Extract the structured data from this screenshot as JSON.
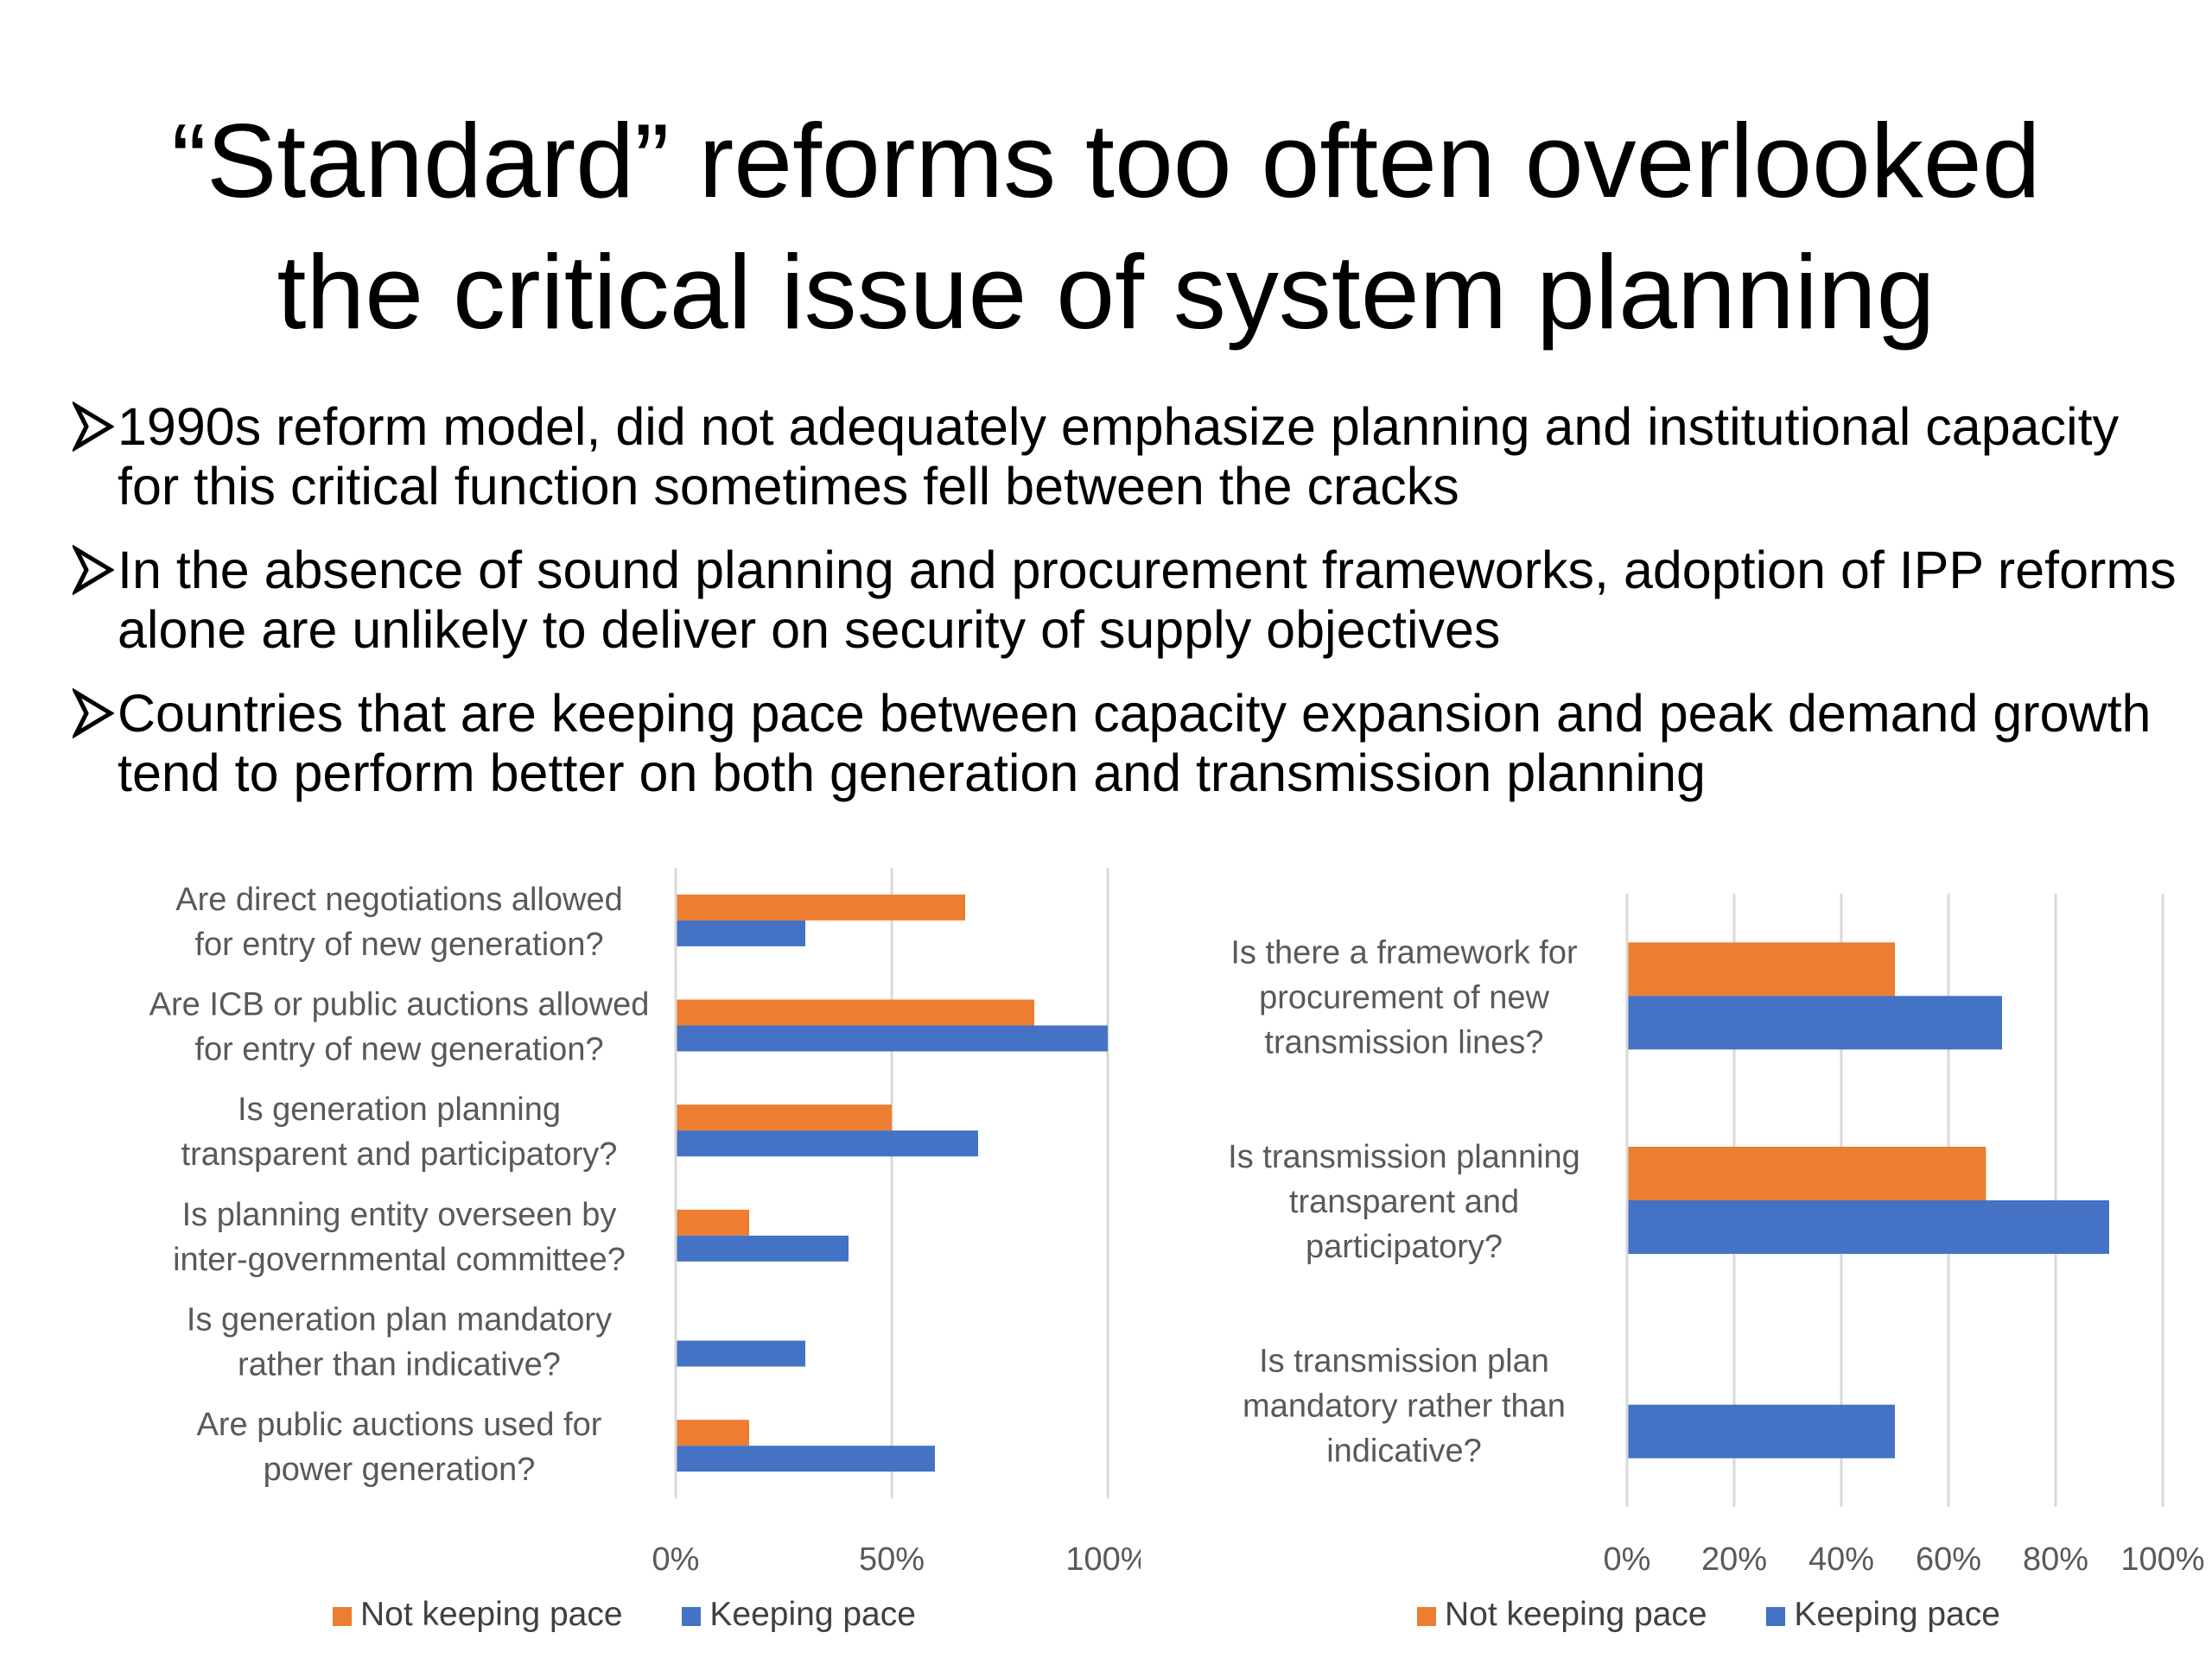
{
  "slide": {
    "title_lines": [
      "“Standard” reforms too often overlooked",
      "the critical issue of system planning"
    ],
    "bullets": [
      "1990s reform model, did not adequately emphasize planning and institutional capacity for this critical function sometimes fell between the cracks",
      "In the absence of sound planning and procurement frameworks, adoption of IPP reforms alone are unlikely to deliver on security of supply objectives",
      "Countries that are keeping pace between capacity expansion and peak demand growth tend to perform better on both generation and transmission planning"
    ],
    "bullet_icon": "arrow-bullet-icon"
  },
  "colors": {
    "not_keeping_pace": "#ED7D31",
    "keeping_pace": "#4472C4",
    "gridline": "#D9D9D9",
    "axis_text": "#595959"
  },
  "chart_data": [
    {
      "type": "bar",
      "orientation": "horizontal",
      "categories": [
        [
          "Are direct negotiations allowed",
          "for entry of new generation?"
        ],
        [
          "Are ICB or public auctions allowed",
          "for entry of new generation?"
        ],
        [
          "Is generation planning",
          "transparent and participatory?"
        ],
        [
          "Is planning entity overseen by",
          "inter-governmental committee?"
        ],
        [
          "Is generation plan mandatory",
          "rather than indicative?"
        ],
        [
          "Are public auctions used for",
          "power generation?"
        ]
      ],
      "series": [
        {
          "name": "Not keeping pace",
          "values": [
            0.67,
            0.83,
            0.5,
            0.17,
            0.0,
            0.17
          ]
        },
        {
          "name": "Keeping pace",
          "values": [
            0.3,
            1.0,
            0.7,
            0.4,
            0.3,
            0.6
          ]
        }
      ],
      "xlim": [
        0,
        1
      ],
      "xticks": [
        "0%",
        "50%",
        "100%"
      ],
      "xtick_values": [
        0,
        0.5,
        1
      ],
      "legend": [
        "Not keeping pace",
        "Keeping pace"
      ],
      "legend_position": "bottom",
      "grid": true
    },
    {
      "type": "bar",
      "orientation": "horizontal",
      "categories": [
        [
          "Is there a framework for",
          "procurement of new",
          "transmission lines?"
        ],
        [
          "Is transmission planning",
          "transparent and",
          "participatory?"
        ],
        [
          "Is transmission plan",
          "mandatory rather than",
          "indicative?"
        ]
      ],
      "series": [
        {
          "name": "Not keeping pace",
          "values": [
            0.5,
            0.67,
            0.0
          ]
        },
        {
          "name": "Keeping pace",
          "values": [
            0.7,
            0.9,
            0.5
          ]
        }
      ],
      "xlim": [
        0,
        1
      ],
      "xticks": [
        "0%",
        "20%",
        "40%",
        "60%",
        "80%",
        "100%"
      ],
      "xtick_values": [
        0,
        0.2,
        0.4,
        0.6,
        0.8,
        1
      ],
      "legend": [
        "Not keeping pace",
        "Keeping pace"
      ],
      "legend_position": "bottom",
      "grid": true
    }
  ]
}
